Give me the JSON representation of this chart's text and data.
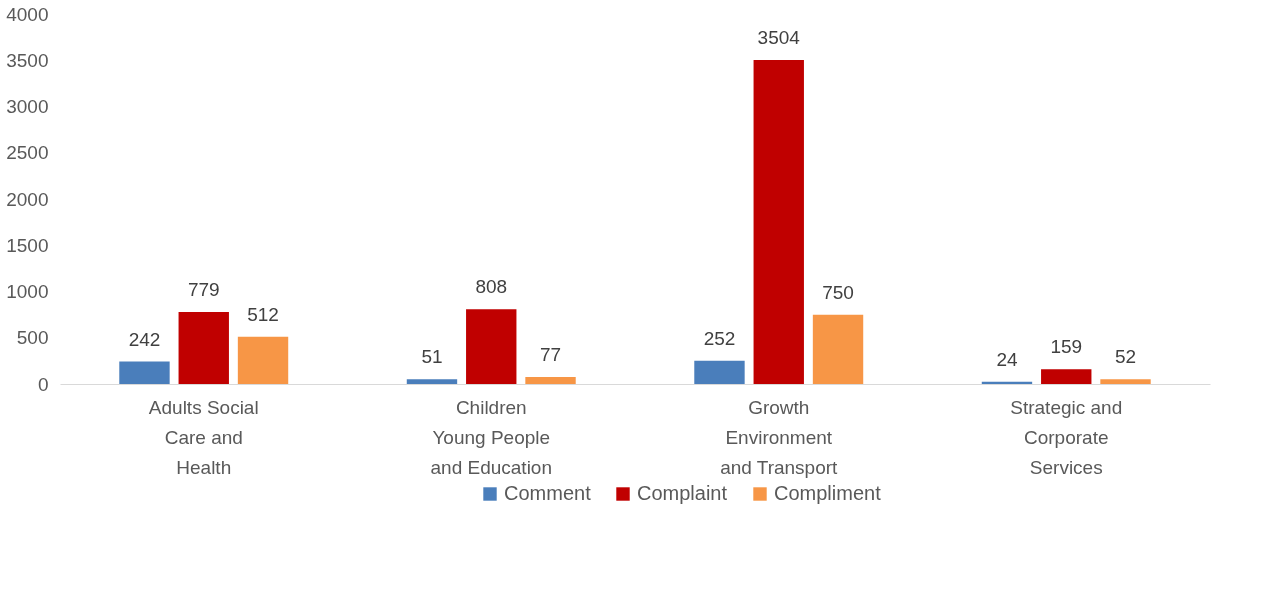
{
  "chart_data": {
    "type": "bar",
    "categories": [
      "Adults Social\nCare and\nHealth",
      "Children\nYoung People\nand Education",
      "Growth\nEnvironment\nand Transport",
      "Strategic and\nCorporate\nServices"
    ],
    "series": [
      {
        "name": "Comment",
        "color": "#4a7ebb",
        "values": [
          242,
          51,
          252,
          24
        ]
      },
      {
        "name": "Complaint",
        "color": "#c00000",
        "values": [
          779,
          808,
          3504,
          159
        ]
      },
      {
        "name": "Compliment",
        "color": "#f79646",
        "values": [
          512,
          77,
          750,
          52
        ]
      }
    ],
    "ylim": [
      0,
      4000
    ],
    "yticks": [
      0,
      500,
      1000,
      1500,
      2000,
      2500,
      3000,
      3500,
      4000
    ],
    "grid": false,
    "legend": "bottom",
    "data_labels": true
  }
}
